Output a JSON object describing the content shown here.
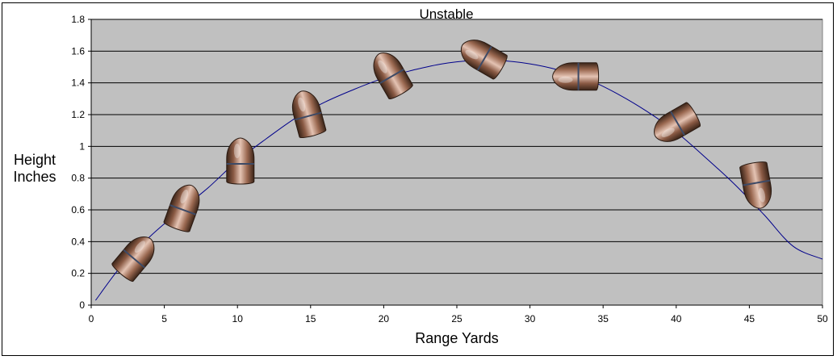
{
  "chart_data": {
    "type": "line",
    "title": "Unstable",
    "xlabel": "Range Yards",
    "ylabel": [
      "Height",
      "Inches"
    ],
    "xlim": [
      0,
      50
    ],
    "ylim": [
      0,
      1.8
    ],
    "x_ticks": [
      "0",
      "5",
      "10",
      "15",
      "20",
      "25",
      "30",
      "35",
      "40",
      "45",
      "50"
    ],
    "y_ticks": [
      "0",
      "0.2",
      "0.4",
      "0.6",
      "0.8",
      "1",
      "1.2",
      "1.4",
      "1.6",
      "1.8"
    ],
    "grid": "horizontal",
    "plot_bg": "#c0c0c0",
    "line_color": "#00008b",
    "series": [
      {
        "x": [
          0.3,
          2,
          4,
          6,
          8,
          10,
          12,
          14,
          16,
          18,
          20,
          22,
          24,
          26,
          28,
          30,
          32,
          34,
          36,
          38,
          40,
          42,
          44,
          46,
          48,
          50
        ],
        "values": [
          0.03,
          0.24,
          0.43,
          0.59,
          0.74,
          0.91,
          1.05,
          1.18,
          1.28,
          1.36,
          1.43,
          1.48,
          1.52,
          1.54,
          1.54,
          1.52,
          1.48,
          1.42,
          1.33,
          1.22,
          1.09,
          0.93,
          0.76,
          0.57,
          0.37,
          0.29
        ]
      }
    ],
    "bullets": [
      {
        "x": 3,
        "y": 0.3,
        "angle": 40
      },
      {
        "x": 6.3,
        "y": 0.61,
        "angle": 20
      },
      {
        "x": 10.2,
        "y": 0.9,
        "angle": 0
      },
      {
        "x": 14.8,
        "y": 1.2,
        "angle": -15
      },
      {
        "x": 20.5,
        "y": 1.45,
        "angle": -30
      },
      {
        "x": 26.8,
        "y": 1.56,
        "angle": -60
      },
      {
        "x": 33.2,
        "y": 1.44,
        "angle": -90
      },
      {
        "x": 40,
        "y": 1.14,
        "angle": -120
      },
      {
        "x": 45.5,
        "y": 0.76,
        "angle": 170
      }
    ]
  }
}
